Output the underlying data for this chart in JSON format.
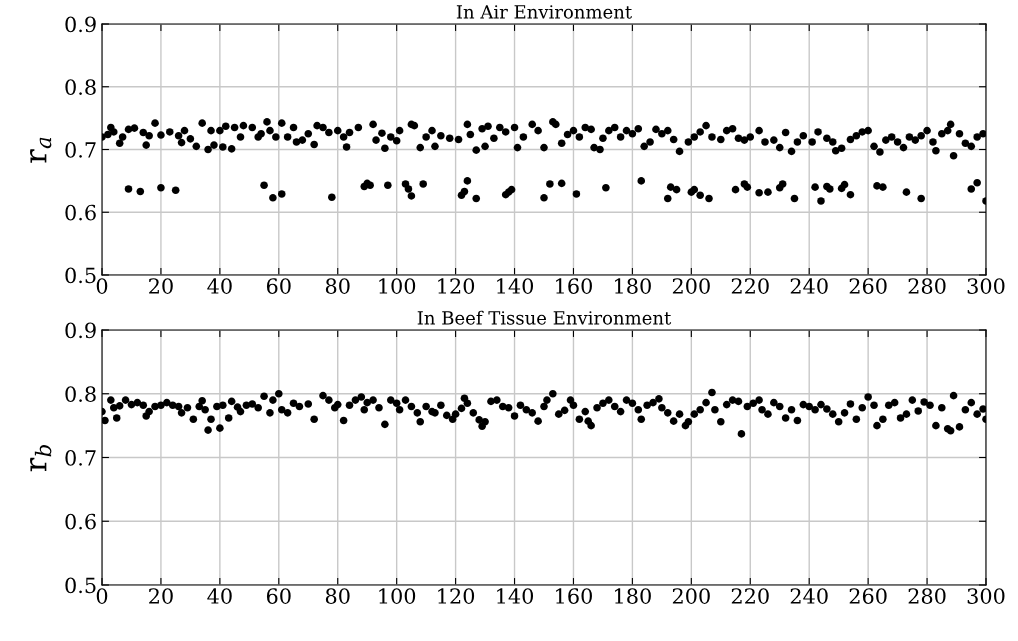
{
  "chart_data": [
    {
      "type": "scatter",
      "title": "In Air Environment",
      "ylabel": "r$_{a}$",
      "xlim": [
        0,
        300
      ],
      "xticks": [
        0,
        20,
        40,
        60,
        80,
        100,
        120,
        140,
        160,
        180,
        200,
        220,
        240,
        260,
        280,
        300
      ],
      "ylim": [
        0.5,
        0.9
      ],
      "yticks": [
        0.5,
        0.6,
        0.7,
        0.8,
        0.9
      ],
      "grid": true,
      "marker": "circle",
      "series": [
        {
          "color": "#000000",
          "x": [
            0,
            2,
            3,
            4,
            6,
            7,
            9,
            11,
            14,
            15,
            16,
            18,
            20,
            23,
            26,
            27,
            28,
            30,
            32,
            34,
            36,
            37,
            38,
            40,
            41,
            42,
            44,
            45,
            47,
            48,
            51,
            53,
            54,
            56,
            57,
            59,
            61,
            63,
            65,
            66,
            68,
            70,
            72,
            73,
            75,
            77,
            80,
            82,
            83,
            84,
            87,
            92,
            93,
            95,
            96,
            98,
            100,
            101,
            105,
            106,
            108,
            110,
            112,
            113,
            115,
            118,
            121,
            124,
            125,
            127,
            129,
            130,
            131,
            133,
            135,
            137,
            140,
            141,
            143,
            146,
            148,
            150,
            153,
            154,
            156,
            158,
            160,
            162,
            164,
            166,
            167,
            169,
            170,
            172,
            174,
            176,
            178,
            180,
            182,
            184,
            186,
            188,
            190,
            192,
            194,
            196,
            199,
            201,
            203,
            205,
            207,
            210,
            212,
            214,
            216,
            218,
            220,
            223,
            225,
            228,
            230,
            232,
            234,
            236,
            238,
            241,
            243,
            246,
            248,
            249,
            251,
            254,
            256,
            258,
            260,
            262,
            264,
            266,
            268,
            270,
            272,
            274,
            276,
            278,
            280,
            282,
            283,
            285,
            287,
            288,
            289,
            291,
            293,
            295,
            297,
            299
          ],
          "values": [
            0.72,
            0.724,
            0.735,
            0.728,
            0.71,
            0.72,
            0.732,
            0.734,
            0.727,
            0.707,
            0.722,
            0.742,
            0.723,
            0.728,
            0.722,
            0.711,
            0.73,
            0.717,
            0.705,
            0.742,
            0.7,
            0.73,
            0.707,
            0.73,
            0.704,
            0.737,
            0.701,
            0.735,
            0.72,
            0.738,
            0.735,
            0.72,
            0.725,
            0.744,
            0.73,
            0.72,
            0.742,
            0.72,
            0.735,
            0.712,
            0.715,
            0.725,
            0.708,
            0.738,
            0.735,
            0.727,
            0.73,
            0.72,
            0.704,
            0.727,
            0.735,
            0.74,
            0.715,
            0.726,
            0.702,
            0.72,
            0.714,
            0.73,
            0.74,
            0.738,
            0.703,
            0.72,
            0.73,
            0.705,
            0.722,
            0.718,
            0.716,
            0.74,
            0.724,
            0.699,
            0.733,
            0.705,
            0.737,
            0.718,
            0.735,
            0.728,
            0.735,
            0.703,
            0.72,
            0.74,
            0.73,
            0.703,
            0.744,
            0.74,
            0.71,
            0.724,
            0.73,
            0.72,
            0.735,
            0.732,
            0.703,
            0.7,
            0.718,
            0.73,
            0.735,
            0.72,
            0.73,
            0.725,
            0.733,
            0.705,
            0.712,
            0.732,
            0.725,
            0.73,
            0.716,
            0.697,
            0.712,
            0.72,
            0.728,
            0.738,
            0.72,
            0.716,
            0.73,
            0.733,
            0.718,
            0.715,
            0.72,
            0.73,
            0.712,
            0.715,
            0.703,
            0.727,
            0.697,
            0.712,
            0.722,
            0.712,
            0.728,
            0.718,
            0.712,
            0.698,
            0.702,
            0.716,
            0.722,
            0.728,
            0.73,
            0.705,
            0.696,
            0.715,
            0.72,
            0.712,
            0.703,
            0.72,
            0.715,
            0.722,
            0.73,
            0.712,
            0.698,
            0.725,
            0.73,
            0.74,
            0.69,
            0.725,
            0.71,
            0.705,
            0.72,
            0.725
          ]
        },
        {
          "color": "#000000",
          "x": [
            9,
            13,
            20,
            25,
            55,
            58,
            61,
            78,
            89,
            90,
            91,
            97,
            103,
            104,
            105,
            109,
            122,
            123,
            124,
            127,
            137,
            138,
            139,
            150,
            152,
            156,
            161,
            171,
            183,
            192,
            193,
            195,
            200,
            201,
            203,
            206,
            215,
            218,
            219,
            223,
            226,
            230,
            231,
            235,
            242,
            244,
            246,
            247,
            251,
            252,
            254,
            263,
            265,
            273,
            278,
            295,
            297,
            300
          ],
          "values": [
            0.637,
            0.633,
            0.639,
            0.635,
            0.643,
            0.623,
            0.629,
            0.624,
            0.641,
            0.646,
            0.643,
            0.643,
            0.645,
            0.637,
            0.626,
            0.645,
            0.627,
            0.633,
            0.65,
            0.622,
            0.628,
            0.632,
            0.636,
            0.623,
            0.645,
            0.646,
            0.629,
            0.639,
            0.65,
            0.622,
            0.64,
            0.636,
            0.632,
            0.636,
            0.627,
            0.622,
            0.636,
            0.645,
            0.64,
            0.631,
            0.632,
            0.639,
            0.645,
            0.622,
            0.64,
            0.618,
            0.641,
            0.637,
            0.638,
            0.644,
            0.628,
            0.642,
            0.64,
            0.632,
            0.622,
            0.637,
            0.647,
            0.618
          ]
        }
      ]
    },
    {
      "type": "scatter",
      "title": "In Beef Tissue Environment",
      "ylabel": "r$_{b}$",
      "xlim": [
        0,
        300
      ],
      "xticks": [
        0,
        20,
        40,
        60,
        80,
        100,
        120,
        140,
        160,
        180,
        200,
        220,
        240,
        260,
        280,
        300
      ],
      "ylim": [
        0.5,
        0.9
      ],
      "yticks": [
        0.5,
        0.6,
        0.7,
        0.8,
        0.9
      ],
      "grid": true,
      "marker": "circle",
      "series": [
        {
          "color": "#000000",
          "x": [
            0,
            1,
            3,
            4,
            5,
            6,
            8,
            10,
            12,
            14,
            15,
            16,
            18,
            20,
            22,
            24,
            26,
            27,
            29,
            31,
            33,
            34,
            35,
            36,
            37,
            39,
            40,
            41,
            43,
            44,
            46,
            47,
            49,
            51,
            53,
            55,
            57,
            58,
            60,
            61,
            63,
            65,
            67,
            70,
            72,
            75,
            77,
            79,
            80,
            82,
            84,
            86,
            88,
            89,
            90,
            92,
            94,
            96,
            98,
            100,
            101,
            103,
            105,
            107,
            108,
            110,
            112,
            113,
            115,
            117,
            119,
            120,
            122,
            123,
            124,
            126,
            128,
            129,
            130,
            132,
            134,
            136,
            138,
            140,
            142,
            144,
            146,
            148,
            150,
            151,
            153,
            155,
            157,
            159,
            160,
            162,
            164,
            165,
            166,
            168,
            170,
            172,
            174,
            176,
            178,
            180,
            182,
            183,
            185,
            187,
            189,
            190,
            192,
            194,
            196,
            198,
            199,
            201,
            203,
            205,
            207,
            208,
            210,
            212,
            214,
            216,
            217,
            219,
            221,
            223,
            224,
            226,
            228,
            230,
            232,
            234,
            236,
            238,
            240,
            242,
            244,
            246,
            248,
            250,
            252,
            254,
            256,
            258,
            260,
            262,
            263,
            265,
            267,
            269,
            271,
            273,
            275,
            277,
            279,
            281,
            283,
            285,
            287,
            288,
            289,
            291,
            293,
            295,
            297,
            299,
            300
          ],
          "values": [
            0.772,
            0.758,
            0.79,
            0.778,
            0.762,
            0.781,
            0.79,
            0.783,
            0.786,
            0.782,
            0.765,
            0.772,
            0.78,
            0.782,
            0.786,
            0.782,
            0.78,
            0.77,
            0.778,
            0.76,
            0.78,
            0.789,
            0.775,
            0.743,
            0.76,
            0.78,
            0.746,
            0.782,
            0.762,
            0.788,
            0.779,
            0.772,
            0.782,
            0.784,
            0.778,
            0.796,
            0.77,
            0.79,
            0.8,
            0.775,
            0.77,
            0.785,
            0.78,
            0.784,
            0.76,
            0.797,
            0.79,
            0.778,
            0.783,
            0.758,
            0.782,
            0.79,
            0.795,
            0.775,
            0.786,
            0.79,
            0.778,
            0.752,
            0.79,
            0.785,
            0.775,
            0.79,
            0.78,
            0.77,
            0.756,
            0.78,
            0.772,
            0.77,
            0.782,
            0.766,
            0.76,
            0.768,
            0.777,
            0.793,
            0.785,
            0.77,
            0.759,
            0.749,
            0.756,
            0.788,
            0.79,
            0.78,
            0.778,
            0.765,
            0.782,
            0.775,
            0.77,
            0.757,
            0.78,
            0.79,
            0.8,
            0.768,
            0.774,
            0.79,
            0.782,
            0.76,
            0.772,
            0.757,
            0.75,
            0.778,
            0.785,
            0.79,
            0.78,
            0.772,
            0.79,
            0.785,
            0.775,
            0.76,
            0.782,
            0.786,
            0.792,
            0.778,
            0.77,
            0.757,
            0.768,
            0.75,
            0.756,
            0.768,
            0.775,
            0.786,
            0.802,
            0.775,
            0.756,
            0.783,
            0.79,
            0.788,
            0.737,
            0.78,
            0.785,
            0.79,
            0.775,
            0.768,
            0.786,
            0.78,
            0.762,
            0.775,
            0.758,
            0.783,
            0.78,
            0.775,
            0.783,
            0.776,
            0.768,
            0.756,
            0.77,
            0.784,
            0.76,
            0.778,
            0.795,
            0.782,
            0.75,
            0.76,
            0.782,
            0.786,
            0.762,
            0.768,
            0.79,
            0.773,
            0.787,
            0.782,
            0.75,
            0.778,
            0.745,
            0.742,
            0.797,
            0.748,
            0.775,
            0.786,
            0.768,
            0.776,
            0.76
          ]
        }
      ]
    }
  ]
}
